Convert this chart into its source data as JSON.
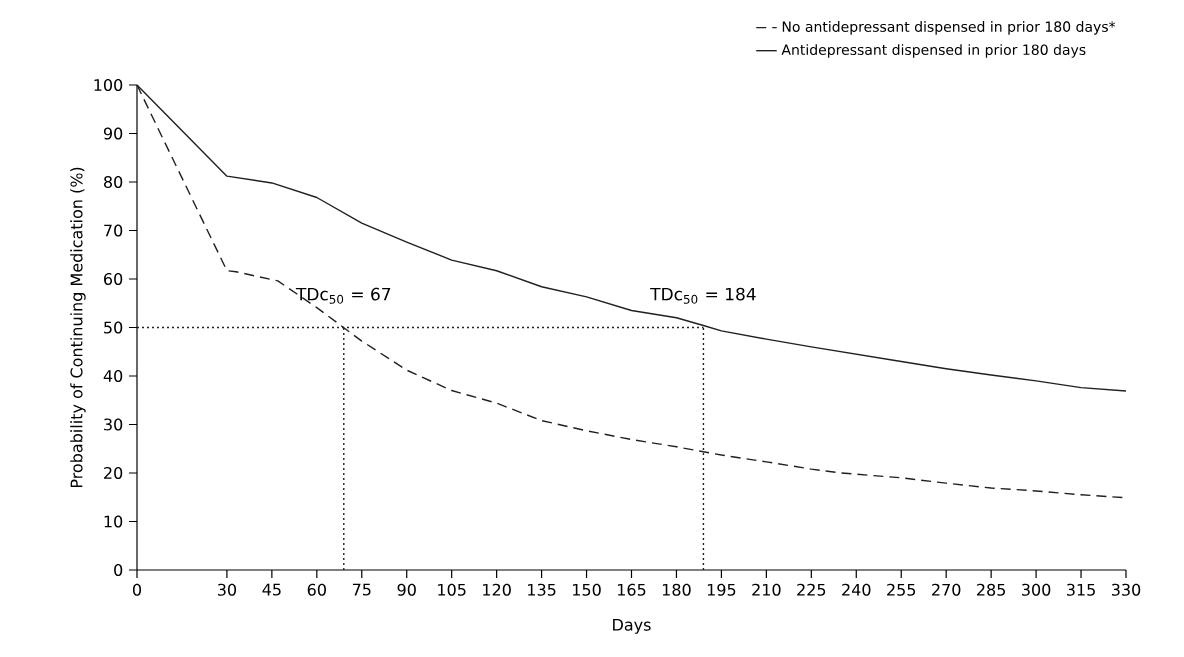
{
  "chart_data": {
    "type": "line",
    "xlabel": "Days",
    "ylabel": "Probability of Continuing Medication (%)",
    "xlim": [
      0,
      330
    ],
    "ylim": [
      0,
      100
    ],
    "xticks": [
      0,
      30,
      45,
      60,
      75,
      90,
      105,
      120,
      135,
      150,
      165,
      180,
      195,
      210,
      225,
      240,
      255,
      270,
      285,
      300,
      315,
      330
    ],
    "yticks": [
      0,
      10,
      20,
      30,
      40,
      50,
      60,
      70,
      80,
      90,
      100
    ],
    "legend": "top right",
    "series": [
      {
        "name": "No antidepressant dispensed in prior 180 days*",
        "color": "#231f20",
        "line_style": "dashed",
        "x": [
          0,
          30,
          33,
          47,
          60,
          75,
          90,
          105,
          120,
          135,
          150,
          165,
          180,
          195,
          210,
          225,
          235,
          255,
          270,
          285,
          300,
          315,
          330
        ],
        "values": [
          100,
          61.7,
          61.5,
          59.6,
          54.1,
          47.2,
          41.2,
          37.0,
          34.4,
          30.8,
          28.7,
          26.9,
          25.4,
          23.7,
          22.3,
          20.8,
          20.0,
          19.0,
          17.9,
          16.9,
          16.3,
          15.5,
          14.9
        ]
      },
      {
        "name": "Antidepressant dispensed in prior 180 days",
        "color": "#231f20",
        "line_style": "solid",
        "x": [
          0,
          30,
          45,
          60,
          75,
          90,
          105,
          120,
          135,
          150,
          165,
          180,
          189,
          195,
          210,
          225,
          240,
          255,
          270,
          285,
          300,
          315,
          330
        ],
        "values": [
          100,
          81.2,
          79.8,
          76.8,
          71.5,
          67.6,
          63.9,
          61.7,
          58.4,
          56.3,
          53.5,
          52.0,
          50.4,
          49.3,
          47.6,
          46.0,
          44.5,
          43.0,
          41.5,
          40.2,
          39.0,
          37.6,
          36.9
        ]
      },
      {
        "color": "#231f20",
        "line_style": "dotted",
        "x": [
          0,
          189
        ],
        "values": [
          50,
          50
        ]
      },
      {
        "color": "#231f20",
        "line_style": "dotted",
        "x": [
          69,
          69
        ],
        "values": [
          0,
          50
        ]
      },
      {
        "color": "#231f20",
        "line_style": "dotted",
        "x": [
          189,
          189
        ],
        "values": [
          0,
          50
        ]
      }
    ],
    "annotations": [
      {
        "text": "TDc$_{50}$ = 67",
        "x": 69,
        "y": 50
      },
      {
        "text": "TDc$_{50}$ = 184",
        "x": 189,
        "y": 50
      }
    ]
  }
}
